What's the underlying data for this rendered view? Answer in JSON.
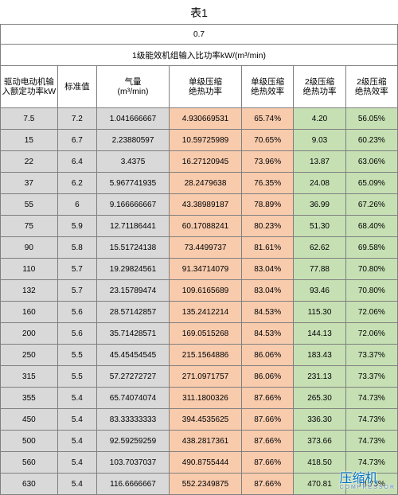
{
  "title": "表1",
  "topValue": "0.7",
  "subHeader": "1级能效机组输入比功率kW/(m³/min)",
  "columns": [
    "驱动电动机输入额定功率kW",
    "标准值",
    "气量\n(m³/min)",
    "单级压缩\n绝热功率",
    "单级压缩\n绝热效率",
    "2级压缩\n绝热功率",
    "2级压缩\n绝热效率"
  ],
  "colColors": [
    "gray",
    "gray",
    "gray",
    "pink",
    "pink",
    "green",
    "green"
  ],
  "rows": [
    [
      "7.5",
      "7.2",
      "1.041666667",
      "4.930669531",
      "65.74%",
      "4.20",
      "56.05%"
    ],
    [
      "15",
      "6.7",
      "2.23880597",
      "10.59725989",
      "70.65%",
      "9.03",
      "60.23%"
    ],
    [
      "22",
      "6.4",
      "3.4375",
      "16.27120945",
      "73.96%",
      "13.87",
      "63.06%"
    ],
    [
      "37",
      "6.2",
      "5.967741935",
      "28.2479638",
      "76.35%",
      "24.08",
      "65.09%"
    ],
    [
      "55",
      "6",
      "9.166666667",
      "43.38989187",
      "78.89%",
      "36.99",
      "67.26%"
    ],
    [
      "75",
      "5.9",
      "12.71186441",
      "60.17088241",
      "80.23%",
      "51.30",
      "68.40%"
    ],
    [
      "90",
      "5.8",
      "15.51724138",
      "73.4499737",
      "81.61%",
      "62.62",
      "69.58%"
    ],
    [
      "110",
      "5.7",
      "19.29824561",
      "91.34714079",
      "83.04%",
      "77.88",
      "70.80%"
    ],
    [
      "132",
      "5.7",
      "23.15789474",
      "109.6165689",
      "83.04%",
      "93.46",
      "70.80%"
    ],
    [
      "160",
      "5.6",
      "28.57142857",
      "135.2412214",
      "84.53%",
      "115.30",
      "72.06%"
    ],
    [
      "200",
      "5.6",
      "35.71428571",
      "169.0515268",
      "84.53%",
      "144.13",
      "72.06%"
    ],
    [
      "250",
      "5.5",
      "45.45454545",
      "215.1564886",
      "86.06%",
      "183.43",
      "73.37%"
    ],
    [
      "315",
      "5.5",
      "57.27272727",
      "271.0971757",
      "86.06%",
      "231.13",
      "73.37%"
    ],
    [
      "355",
      "5.4",
      "65.74074074",
      "311.1800326",
      "87.66%",
      "265.30",
      "74.73%"
    ],
    [
      "450",
      "5.4",
      "83.33333333",
      "394.4535625",
      "87.66%",
      "336.30",
      "74.73%"
    ],
    [
      "500",
      "5.4",
      "92.59259259",
      "438.2817361",
      "87.66%",
      "373.66",
      "74.73%"
    ],
    [
      "560",
      "5.4",
      "103.7037037",
      "490.8755444",
      "87.66%",
      "418.50",
      "74.73%"
    ],
    [
      "630",
      "5.4",
      "116.6666667",
      "552.2349875",
      "87.66%",
      "470.81",
      "74.73%"
    ]
  ],
  "watermark": {
    "cn": "压缩机",
    "en": "COMPRESSOR"
  }
}
